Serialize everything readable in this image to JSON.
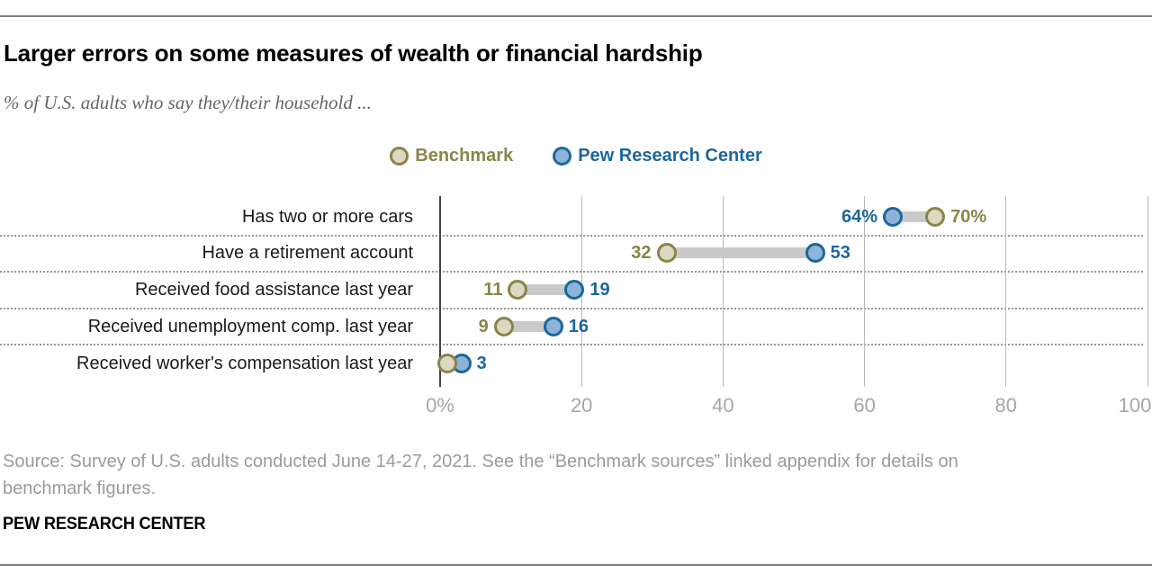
{
  "header": {
    "title": "Larger errors on some measures of wealth or financial hardship",
    "subtitle": "% of U.S. adults who say they/their household ..."
  },
  "legend": {
    "benchmark_label": "Benchmark",
    "pew_label": "Pew Research Center"
  },
  "colors": {
    "benchmark_fill": "#dcd8c3",
    "benchmark_stroke": "#8b8449",
    "benchmark_text": "#8b8449",
    "pew_fill": "#8db4d8",
    "pew_stroke": "#1c679c",
    "pew_text": "#1c679c",
    "connector": "#cacaca"
  },
  "chart_data": {
    "type": "dumbbell",
    "title": "Larger errors on some measures of wealth or financial hardship",
    "subtitle": "% of U.S. adults who say they/their household ...",
    "categories": [
      "Has two or more cars",
      "Have a retirement account",
      "Received food assistance last year",
      "Received unemployment comp. last year",
      "Received worker's compensation last year"
    ],
    "series": [
      {
        "name": "Benchmark",
        "values": [
          70,
          32,
          11,
          9,
          1
        ],
        "display_labels": [
          "70%",
          "32",
          "11",
          "9",
          ""
        ]
      },
      {
        "name": "Pew Research Center",
        "values": [
          64,
          53,
          19,
          16,
          3
        ],
        "display_labels": [
          "64%",
          "53",
          "19",
          "16",
          "3"
        ]
      }
    ],
    "x_axis": {
      "min": 0,
      "max": 100,
      "tick_values": [
        0,
        20,
        40,
        60,
        80,
        100
      ],
      "tick_labels": [
        "0%",
        "20",
        "40",
        "60",
        "80",
        "100"
      ],
      "grid": true
    },
    "legend_position": "top-center"
  },
  "source": {
    "line1": "Source: Survey of U.S. adults conducted June 14-27, 2021. See the “Benchmark sources” linked appendix for details on",
    "line2": "benchmark figures."
  },
  "footer": {
    "wordmark": "PEW RESEARCH CENTER"
  }
}
